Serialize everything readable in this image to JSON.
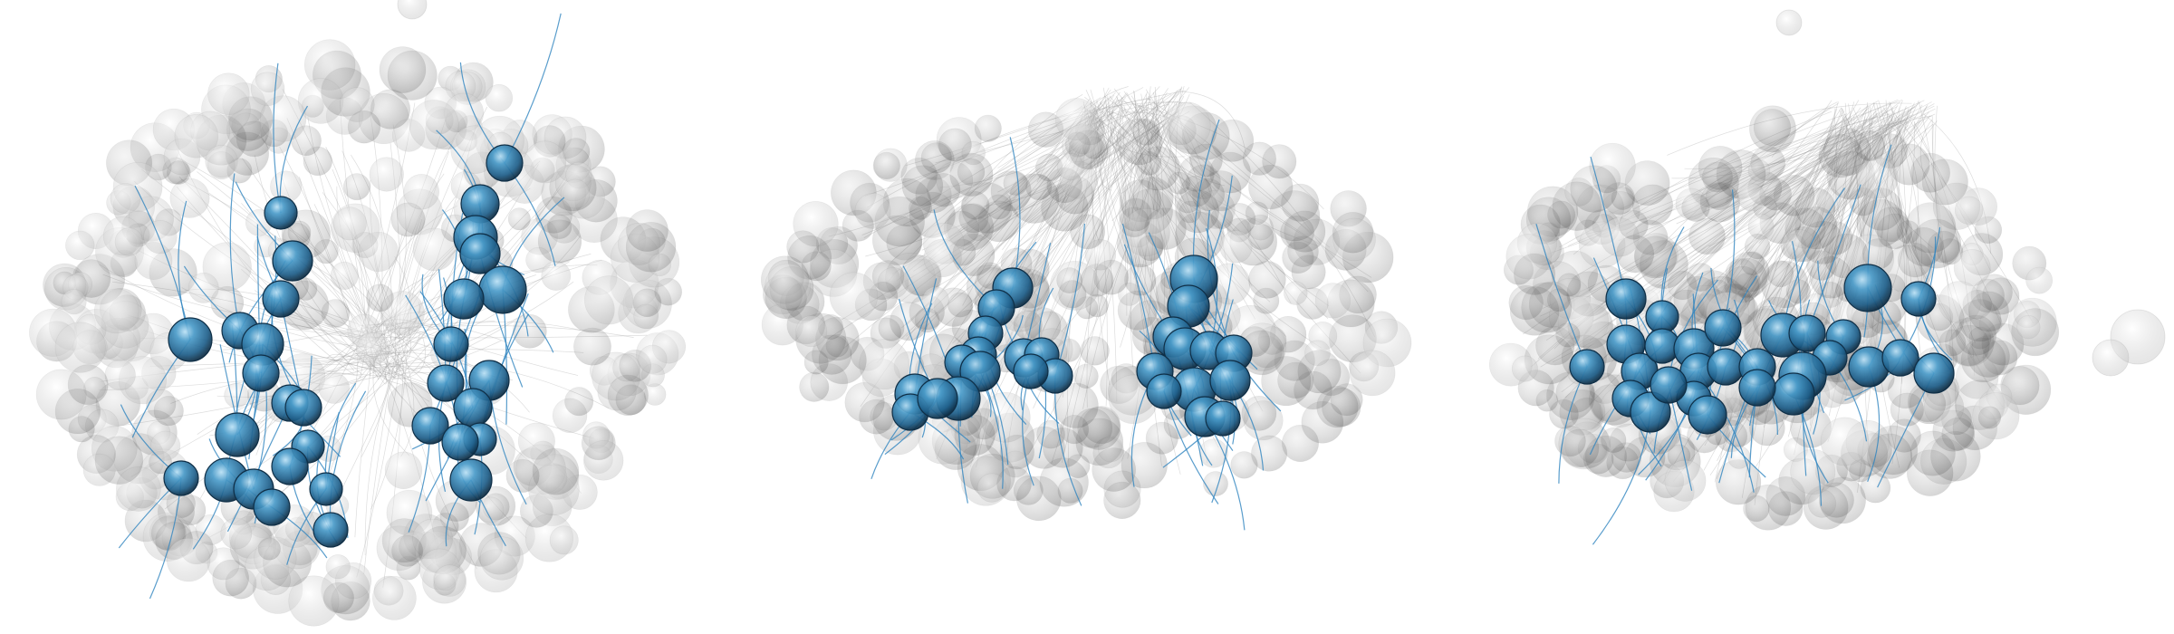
{
  "figure": {
    "panel_count": 3,
    "background": "#ffffff",
    "colors": {
      "highlight_sphere": "#2f7fae",
      "highlight_sphere_dark": "#0f2f47",
      "highlight_sphere_light": "#9fd0ec",
      "highlight_fiber": "#2f85bf",
      "background_sphere": "#8a8a8a",
      "background_fiber": "#9e9e9e"
    },
    "panels": [
      {
        "name": "left-panel",
        "highlight_clusters": 2,
        "highlight_sphere_count": 36
      },
      {
        "name": "middle-panel",
        "highlight_clusters": 2,
        "highlight_sphere_count": 26
      },
      {
        "name": "right-panel",
        "highlight_clusters": 1,
        "highlight_sphere_count": 28
      }
    ]
  }
}
